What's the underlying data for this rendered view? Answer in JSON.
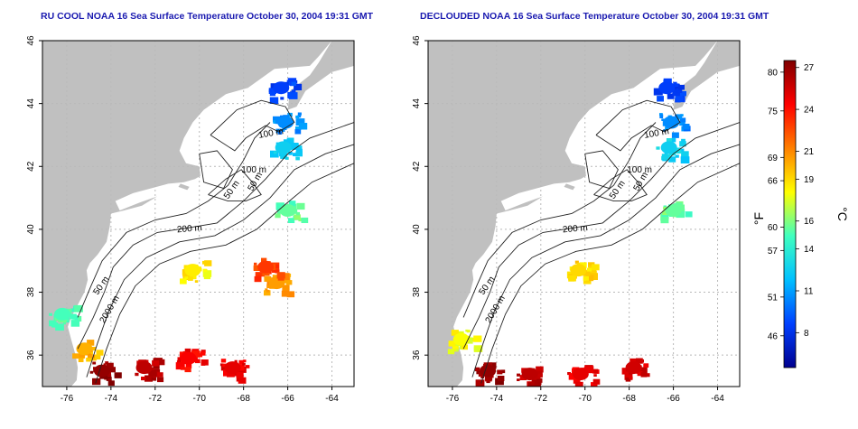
{
  "chart_data": [
    {
      "type": "heatmap",
      "title": "RU COOL NOAA 16 Sea Surface Temperature October 30, 2004 19:31 GMT",
      "x_ticks": [
        -76,
        -74,
        -72,
        -70,
        -68,
        -66,
        -64
      ],
      "y_ticks": [
        36,
        38,
        40,
        42,
        44,
        46
      ],
      "xlim": [
        -77.1,
        -63.0
      ],
      "ylim": [
        35.0,
        46.0
      ],
      "grid": true,
      "contour_labels": [
        "100 m",
        "100 m",
        "50 m",
        "50 m",
        "200 m",
        "50 m",
        "2000 m"
      ],
      "sst_patches_c": [
        {
          "lon": -66.3,
          "lat": 44.5,
          "temp_c": 8.5
        },
        {
          "lon": -66.1,
          "lat": 43.4,
          "temp_c": 10.5
        },
        {
          "lon": -66.2,
          "lat": 42.6,
          "temp_c": 12.5
        },
        {
          "lon": -66.0,
          "lat": 40.6,
          "temp_c": 15.5
        },
        {
          "lon": -70.3,
          "lat": 38.7,
          "temp_c": 18.5
        },
        {
          "lon": -66.5,
          "lat": 38.3,
          "temp_c": 20.5
        },
        {
          "lon": -67.0,
          "lat": 38.8,
          "temp_c": 23.0
        },
        {
          "lon": -76.2,
          "lat": 37.3,
          "temp_c": 15.0
        },
        {
          "lon": -75.2,
          "lat": 36.2,
          "temp_c": 20.0
        },
        {
          "lon": -74.4,
          "lat": 35.5,
          "temp_c": 27.0
        },
        {
          "lon": -72.5,
          "lat": 35.6,
          "temp_c": 26.0
        },
        {
          "lon": -70.5,
          "lat": 35.9,
          "temp_c": 24.5
        },
        {
          "lon": -68.5,
          "lat": 35.6,
          "temp_c": 25.0
        }
      ]
    },
    {
      "type": "heatmap",
      "title": "DECLOUDED NOAA 16 Sea Surface Temperature October 30, 2004 19:31 GMT",
      "x_ticks": [
        -76,
        -74,
        -72,
        -70,
        -68,
        -66,
        -64
      ],
      "y_ticks": [
        36,
        38,
        40,
        42,
        44,
        46
      ],
      "xlim": [
        -77.1,
        -63.0
      ],
      "ylim": [
        35.0,
        46.0
      ],
      "grid": true,
      "contour_labels": [
        "100 m",
        "100 m",
        "50 m",
        "50 m",
        "200 m",
        "50 m",
        "2000 m"
      ],
      "sst_patches_c": [
        {
          "lon": -66.3,
          "lat": 44.5,
          "temp_c": 8.5
        },
        {
          "lon": -66.1,
          "lat": 43.4,
          "temp_c": 10.5
        },
        {
          "lon": -66.2,
          "lat": 42.6,
          "temp_c": 12.5
        },
        {
          "lon": -66.0,
          "lat": 40.6,
          "temp_c": 15.5
        },
        {
          "lon": -70.3,
          "lat": 38.7,
          "temp_c": 19.0
        },
        {
          "lon": -75.6,
          "lat": 36.5,
          "temp_c": 18.0
        },
        {
          "lon": -74.4,
          "lat": 35.5,
          "temp_c": 27.0
        },
        {
          "lon": -72.5,
          "lat": 35.4,
          "temp_c": 26.0
        },
        {
          "lon": -70.2,
          "lat": 35.4,
          "temp_c": 25.0
        },
        {
          "lon": -67.8,
          "lat": 35.6,
          "temp_c": 25.5
        }
      ]
    }
  ],
  "colorbar": {
    "fahrenheit_label": "°F",
    "celsius_label": "°C",
    "f_ticks": [
      46,
      51,
      57,
      60,
      66,
      69,
      75,
      80
    ],
    "c_ticks": [
      8,
      11,
      14,
      16,
      19,
      21,
      24,
      27
    ],
    "range_c": [
      5.5,
      27.5
    ],
    "colors": [
      "#00008f",
      "#0040ff",
      "#00c0ff",
      "#40ffbf",
      "#ffff00",
      "#ff8000",
      "#ff0000",
      "#800000"
    ]
  }
}
